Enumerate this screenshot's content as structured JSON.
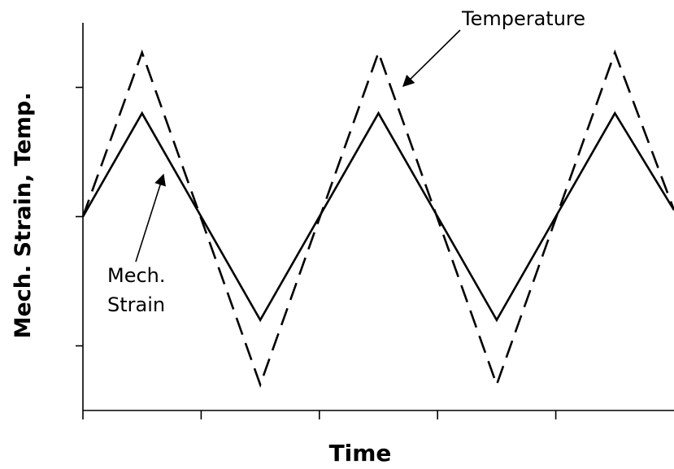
{
  "chart_data": {
    "type": "line",
    "title": "",
    "xlabel": "Time",
    "ylabel": "Mech. Strain, Temp.",
    "xlim": [
      0,
      5
    ],
    "ylim": [
      -1.5,
      1.5
    ],
    "grid": false,
    "legend": "none",
    "series": [
      {
        "label_lines": [
          "Mech.",
          "Strain"
        ],
        "style": "solid",
        "color": "#000000",
        "x": [
          0,
          0.5,
          1.5,
          2.5,
          3.5,
          4.5,
          5
        ],
        "y": [
          0,
          0.8,
          -0.8,
          0.8,
          -0.8,
          0.8,
          0.05
        ]
      },
      {
        "name": "Temperature",
        "style": "dashed",
        "color": "#000000",
        "x": [
          0,
          0.5,
          1.5,
          2.5,
          3.5,
          4.5,
          5
        ],
        "y": [
          0,
          1.27,
          -1.3,
          1.27,
          -1.3,
          1.27,
          0.05
        ]
      }
    ],
    "annotations": [
      {
        "text": "Temperature",
        "points_to": "dashed series"
      },
      {
        "text": "Mech.\nStrain",
        "points_to": "solid series"
      }
    ]
  }
}
